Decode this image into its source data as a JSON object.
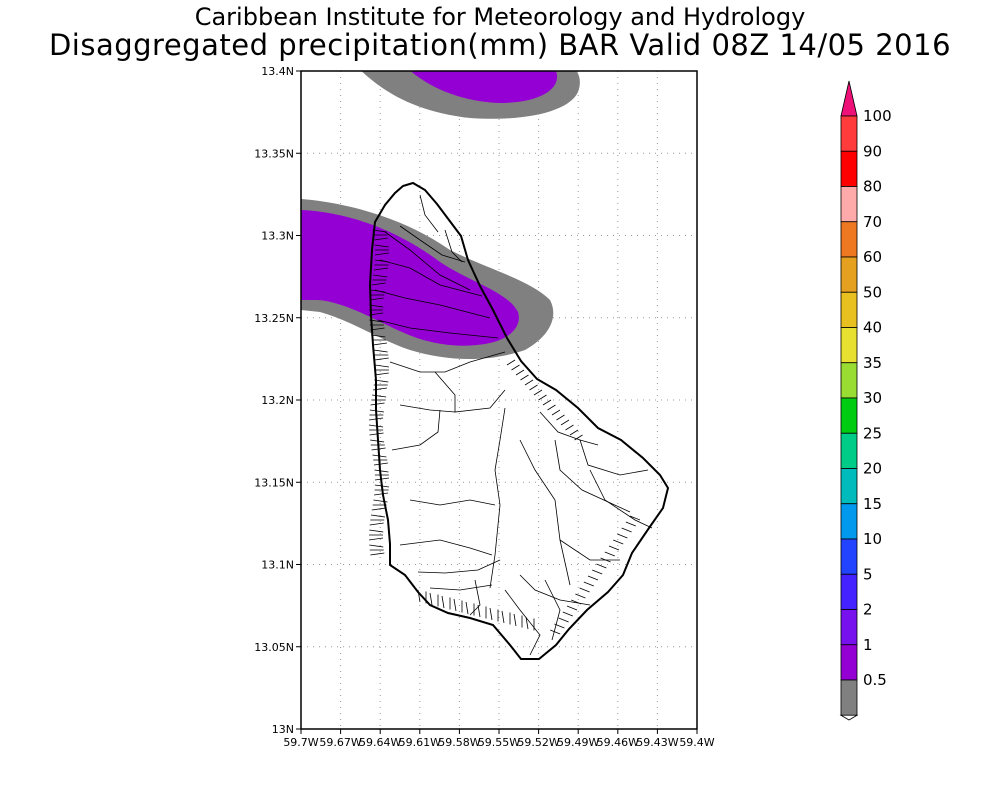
{
  "title_line1": "Caribbean Institute for Meteorology and Hydrology",
  "title_line2": "Disaggregated precipitation(mm) BAR Valid 08Z 14/05 2016",
  "map": {
    "region": "Barbados",
    "lat_ticks": [
      "13.4N",
      "13.35N",
      "13.3N",
      "13.25N",
      "13.2N",
      "13.15N",
      "13.1N",
      "13.05N",
      "13N"
    ],
    "lon_ticks": [
      "59.7W",
      "59.67W",
      "59.64W",
      "59.61W",
      "59.58W",
      "59.55W",
      "59.52W",
      "59.49W",
      "59.46W",
      "59.43W",
      "59.4W"
    ],
    "lat_range": [
      13.0,
      13.4
    ],
    "lon_range": [
      -59.7,
      -59.4
    ],
    "grid": "dotted",
    "colors": {
      "ocean_background": "#ffffff",
      "rain_0_5_to_1": "#808080",
      "rain_1_to_2": "#9400d3"
    }
  },
  "colorbar": {
    "labels": [
      "100",
      "90",
      "80",
      "70",
      "60",
      "50",
      "40",
      "35",
      "30",
      "25",
      "20",
      "15",
      "10",
      "5",
      "2",
      "1",
      "0.5"
    ],
    "colors": [
      "#ff3b3b",
      "#ff0000",
      "#ffaaaa",
      "#ee7722",
      "#e6a020",
      "#e8c020",
      "#e8e030",
      "#99dd33",
      "#00cc11",
      "#00cc88",
      "#00bbbb",
      "#0099ee",
      "#2244ff",
      "#4422ff",
      "#7711ee",
      "#9400d3",
      "#808080"
    ],
    "top_arrow_color": "#ee1177"
  }
}
